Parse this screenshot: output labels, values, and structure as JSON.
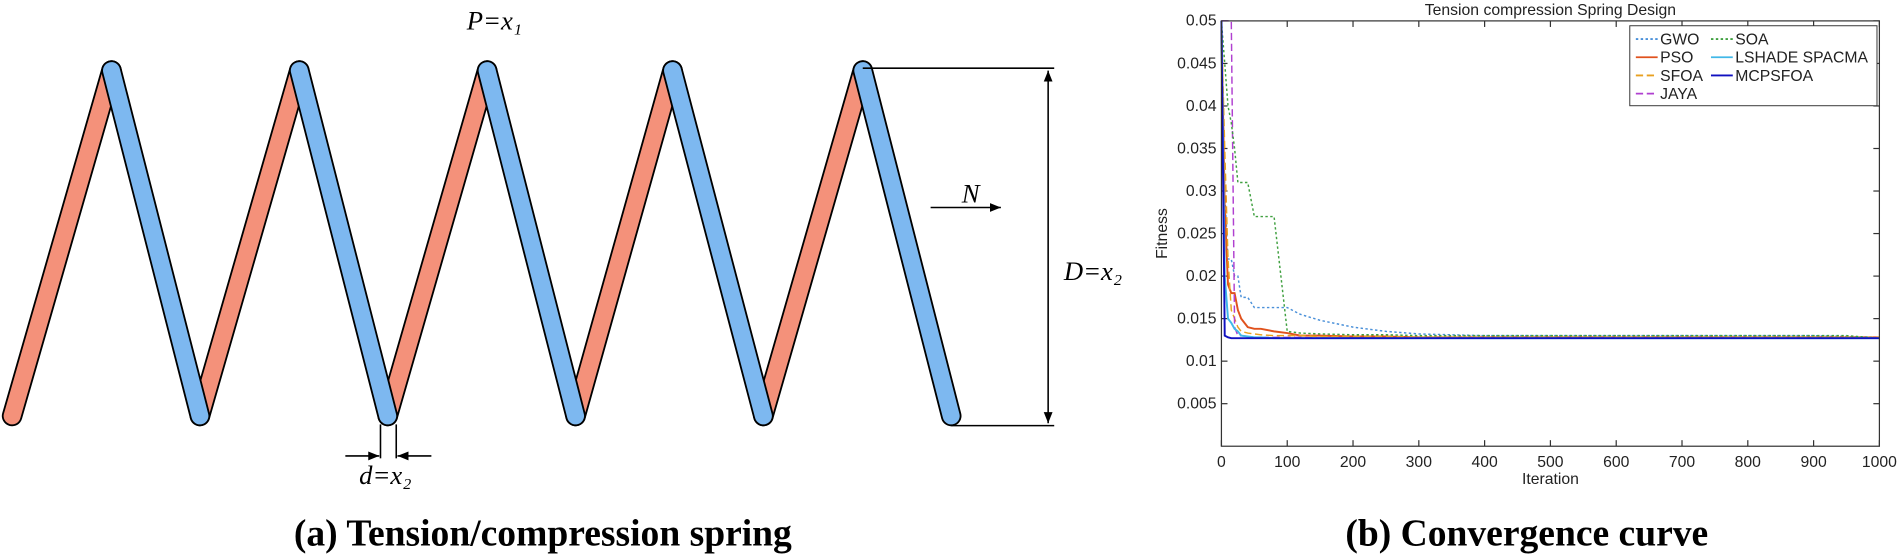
{
  "diagram": {
    "p_label": "P=x₁",
    "n_label": "N",
    "D_label": "D=x₂",
    "d_label": "d=x₂"
  },
  "captions": [
    "(a) Tension/compression spring",
    "(b) Convergence curve"
  ],
  "chart_data": {
    "type": "line",
    "title": "Tension compression Spring Design",
    "xlabel": "Iteration",
    "ylabel": "Fitness",
    "x": [
      0,
      5,
      10,
      15,
      20,
      25,
      30,
      40,
      50,
      60,
      80,
      100,
      120,
      150,
      200,
      250,
      300,
      400,
      500,
      600,
      700,
      800,
      900,
      950,
      1000
    ],
    "series": [
      {
        "name": "GWO",
        "color": "#4a90d9",
        "style": "dotted",
        "values": [
          0.05,
          0.03,
          0.022,
          0.022,
          0.02,
          0.02,
          0.0175,
          0.0175,
          0.0163,
          0.0163,
          0.0163,
          0.0163,
          0.0155,
          0.0148,
          0.014,
          0.0135,
          0.0132,
          0.013,
          0.013,
          0.013,
          0.013,
          0.013,
          0.013,
          0.0129,
          0.0128
        ]
      },
      {
        "name": "PSO",
        "color": "#e0521d",
        "style": "solid",
        "values": [
          0.05,
          0.028,
          0.019,
          0.018,
          0.018,
          0.016,
          0.015,
          0.014,
          0.0138,
          0.0138,
          0.0135,
          0.0133,
          0.013,
          0.013,
          0.0129,
          0.0129,
          0.0128,
          0.0128,
          0.0128,
          0.0128,
          0.0128,
          0.0128,
          0.0128,
          0.0128,
          0.0128
        ]
      },
      {
        "name": "SFOA",
        "color": "#e8a020",
        "style": "dashed",
        "values": [
          0.05,
          0.035,
          0.022,
          0.016,
          0.015,
          0.014,
          0.0135,
          0.0133,
          0.0132,
          0.0131,
          0.013,
          0.013,
          0.013,
          0.0129,
          0.0129,
          0.0129,
          0.0128,
          0.0128,
          0.0128,
          0.0128,
          0.0128,
          0.0128,
          0.0128,
          0.0128,
          0.0128
        ]
      },
      {
        "name": "JAYA",
        "color": "#b040d0",
        "style": "dashed",
        "values": [
          0.05,
          0.05,
          0.05,
          0.05,
          0.014,
          0.013,
          0.013,
          0.0129,
          0.0128,
          0.0128,
          0.0128,
          0.0128,
          0.0128,
          0.0127,
          0.0127,
          0.0127,
          0.0127,
          0.0127,
          0.0127,
          0.0127,
          0.0127,
          0.0127,
          0.0127,
          0.0127,
          0.0127
        ]
      },
      {
        "name": "SOA",
        "color": "#40a040",
        "style": "dotted",
        "values": [
          0.05,
          0.045,
          0.04,
          0.038,
          0.035,
          0.031,
          0.031,
          0.031,
          0.027,
          0.027,
          0.027,
          0.0135,
          0.0133,
          0.0132,
          0.0131,
          0.0131,
          0.013,
          0.013,
          0.013,
          0.013,
          0.013,
          0.013,
          0.013,
          0.013,
          0.0127
        ]
      },
      {
        "name": "LSHADE SPACMA",
        "color": "#40b8e8",
        "style": "solid",
        "values": [
          0.05,
          0.02,
          0.015,
          0.0145,
          0.0138,
          0.0135,
          0.013,
          0.0129,
          0.0128,
          0.0128,
          0.0127,
          0.0127,
          0.0127,
          0.0127,
          0.0127,
          0.0127,
          0.0127,
          0.0127,
          0.0127,
          0.0127,
          0.0127,
          0.0127,
          0.0127,
          0.0127,
          0.0127
        ]
      },
      {
        "name": "MCPSFOA",
        "color": "#1010c0",
        "style": "solid",
        "values": [
          0.05,
          0.013,
          0.0128,
          0.0127,
          0.0127,
          0.0127,
          0.0127,
          0.0127,
          0.0127,
          0.0127,
          0.0127,
          0.0127,
          0.0127,
          0.0127,
          0.0127,
          0.0127,
          0.0127,
          0.0127,
          0.0127,
          0.0127,
          0.0127,
          0.0127,
          0.0127,
          0.0127,
          0.0127
        ]
      }
    ],
    "xlim": [
      0,
      1000
    ],
    "xticks": [
      0,
      100,
      200,
      300,
      400,
      500,
      600,
      700,
      800,
      900,
      1000
    ],
    "ylim": [
      0,
      0.05
    ],
    "yticks": [
      0.005,
      0.01,
      0.015,
      0.02,
      0.025,
      0.03,
      0.035,
      0.04,
      0.045,
      0.05
    ],
    "grid": false,
    "legend": "upper right"
  }
}
